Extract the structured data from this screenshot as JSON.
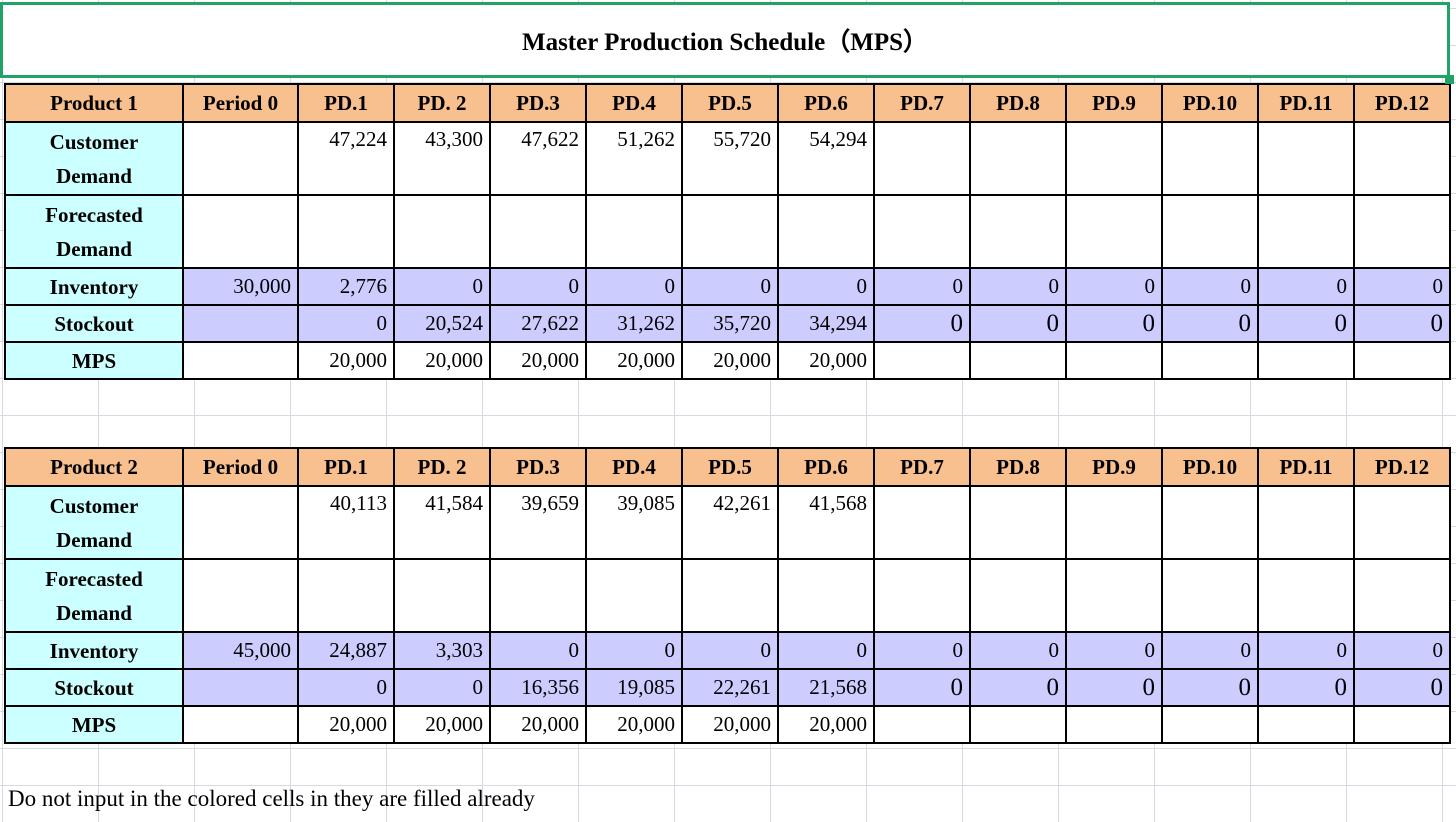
{
  "title": "Master Production Schedule（MPS）",
  "periods": [
    "Period 0",
    "PD.1",
    "PD. 2",
    "PD.3",
    "PD.4",
    "PD.5",
    "PD.6",
    "PD.7",
    "PD.8",
    "PD.9",
    "PD.10",
    "PD.11",
    "PD.12"
  ],
  "products": [
    {
      "name": "Product 1",
      "rows": {
        "customer_demand": {
          "label": "Customer Demand",
          "values": [
            "",
            "47,224",
            "43,300",
            "47,622",
            "51,262",
            "55,720",
            "54,294",
            "",
            "",
            "",
            "",
            "",
            ""
          ]
        },
        "forecasted_demand": {
          "label": "Forecasted Demand",
          "values": [
            "",
            "",
            "",
            "",
            "",
            "",
            "",
            "",
            "",
            "",
            "",
            "",
            ""
          ]
        },
        "inventory": {
          "label": "Inventory",
          "values": [
            "30,000",
            "2,776",
            "0",
            "0",
            "0",
            "0",
            "0",
            "0",
            "0",
            "0",
            "0",
            "0",
            "0"
          ]
        },
        "stockout": {
          "label": "Stockout",
          "values": [
            "",
            "0",
            "20,524",
            "27,622",
            "31,262",
            "35,720",
            "34,294",
            "0",
            "0",
            "0",
            "0",
            "0",
            "0"
          ]
        },
        "mps": {
          "label": "MPS",
          "values": [
            "",
            "20,000",
            "20,000",
            "20,000",
            "20,000",
            "20,000",
            "20,000",
            "",
            "",
            "",
            "",
            "",
            ""
          ]
        }
      }
    },
    {
      "name": "Product 2",
      "rows": {
        "customer_demand": {
          "label": "Customer Demand",
          "values": [
            "",
            "40,113",
            "41,584",
            "39,659",
            "39,085",
            "42,261",
            "41,568",
            "",
            "",
            "",
            "",
            "",
            ""
          ]
        },
        "forecasted_demand": {
          "label": "Forecasted Demand",
          "values": [
            "",
            "",
            "",
            "",
            "",
            "",
            "",
            "",
            "",
            "",
            "",
            "",
            ""
          ]
        },
        "inventory": {
          "label": "Inventory",
          "values": [
            "45,000",
            "24,887",
            "3,303",
            "0",
            "0",
            "0",
            "0",
            "0",
            "0",
            "0",
            "0",
            "0",
            "0"
          ]
        },
        "stockout": {
          "label": "Stockout",
          "values": [
            "",
            "0",
            "0",
            "16,356",
            "19,085",
            "22,261",
            "21,568",
            "0",
            "0",
            "0",
            "0",
            "0",
            "0"
          ]
        },
        "mps": {
          "label": "MPS",
          "values": [
            "",
            "20,000",
            "20,000",
            "20,000",
            "20,000",
            "20,000",
            "20,000",
            "",
            "",
            "",
            "",
            "",
            ""
          ]
        }
      }
    }
  ],
  "note": "Do not input in the colored cells in they are filled already",
  "colors": {
    "header": "#f8bf8f",
    "label": "#ccffff",
    "computed": "#ccccff",
    "selection": "#21a366"
  }
}
